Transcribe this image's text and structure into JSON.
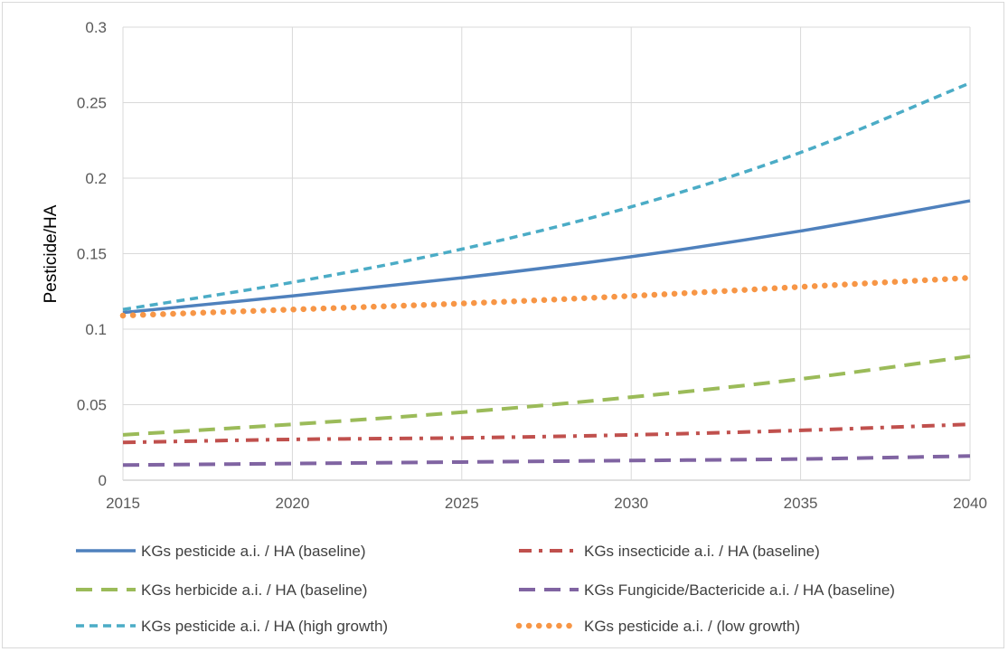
{
  "chart_data": {
    "type": "line",
    "title": "",
    "xlabel": "",
    "ylabel": "Pesticide/HA",
    "xlim": [
      2015,
      2040
    ],
    "ylim": [
      0,
      0.3
    ],
    "x_ticks": [
      "2015",
      "2020",
      "2025",
      "2030",
      "2035",
      "2040"
    ],
    "y_ticks": [
      "0",
      "0.05",
      "0.1",
      "0.15",
      "0.2",
      "0.25",
      "0.3"
    ],
    "grid": true,
    "legend_position": "bottom",
    "x": [
      2015,
      2020,
      2025,
      2030,
      2035,
      2040
    ],
    "series": [
      {
        "name": "KGs pesticide a.i. / HA (baseline)",
        "color": "#4f81bd",
        "dash": "solid",
        "values": [
          0.111,
          0.122,
          0.134,
          0.148,
          0.165,
          0.185
        ]
      },
      {
        "name": "KGs insecticide a.i. / HA (baseline)",
        "color": "#c0504d",
        "dash": "dashdot",
        "values": [
          0.025,
          0.027,
          0.028,
          0.03,
          0.033,
          0.037
        ]
      },
      {
        "name": "KGs herbicide a.i. / HA (baseline)",
        "color": "#9bbb59",
        "dash": "longdash",
        "values": [
          0.03,
          0.037,
          0.045,
          0.055,
          0.067,
          0.082
        ]
      },
      {
        "name": "KGs Fungicide/Bactericide a.i. / HA (baseline)",
        "color": "#8064a2",
        "dash": "longdash",
        "values": [
          0.01,
          0.011,
          0.012,
          0.013,
          0.014,
          0.016
        ]
      },
      {
        "name": "KGs pesticide a.i. / HA (high growth)",
        "color": "#4bacc6",
        "dash": "dash",
        "values": [
          0.113,
          0.131,
          0.153,
          0.181,
          0.217,
          0.263
        ]
      },
      {
        "name": "KGs pesticide a.i. / (low growth)",
        "color": "#f79646",
        "dash": "dot",
        "values": [
          0.109,
          0.113,
          0.117,
          0.122,
          0.128,
          0.134
        ]
      }
    ]
  }
}
